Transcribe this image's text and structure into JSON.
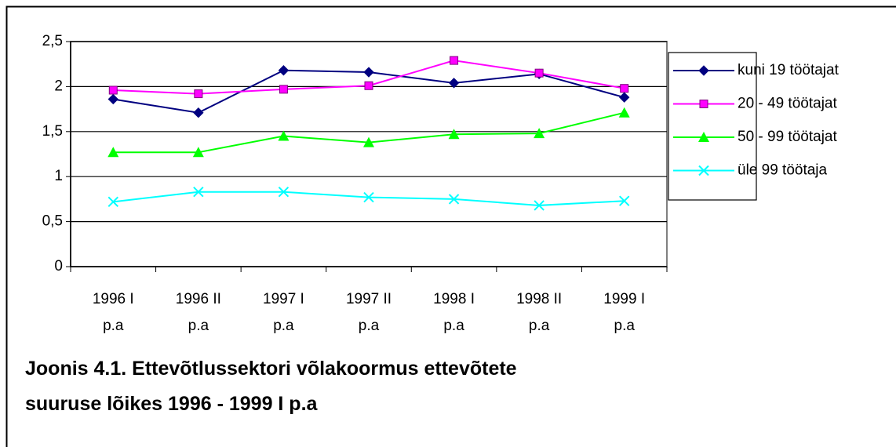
{
  "chart_data": {
    "type": "line",
    "caption": "Joonis 4.1. Ettevõtlussektori võlakoormus ettevõtete suuruse lõikes 1996 - 1999 I p.a",
    "categories": [
      "1996 I p.a",
      "1996 II p.a",
      "1997 I p.a",
      "1997 II p.a",
      "1998 I p.a",
      "1998 II p.a",
      "1999 I p.a"
    ],
    "series": [
      {
        "name": "kuni 19 töötajat",
        "color": "#000080",
        "marker": "diamond",
        "values": [
          1.86,
          1.71,
          2.18,
          2.16,
          2.04,
          2.14,
          1.88
        ]
      },
      {
        "name": "20 - 49 töötajat",
        "color": "#ff00ff",
        "marker": "square",
        "values": [
          1.96,
          1.92,
          1.97,
          2.01,
          2.29,
          2.15,
          1.98
        ]
      },
      {
        "name": "50 - 99 töötajat",
        "color": "#00ff00",
        "marker": "triangle",
        "values": [
          1.27,
          1.27,
          1.45,
          1.38,
          1.47,
          1.48,
          1.71
        ]
      },
      {
        "name": "üle 99 töötaja",
        "color": "#00ffff",
        "marker": "x",
        "values": [
          0.72,
          0.83,
          0.83,
          0.77,
          0.75,
          0.68,
          0.73
        ]
      }
    ],
    "ylim": [
      0,
      2.5
    ],
    "yticks": [
      0,
      {
        "value": 0.5,
        "label": "0,5"
      },
      1,
      {
        "value": 1.5,
        "label": "1,5"
      },
      2,
      {
        "value": 2.5,
        "label": "2,5"
      }
    ],
    "grid": true,
    "legend": "right"
  }
}
